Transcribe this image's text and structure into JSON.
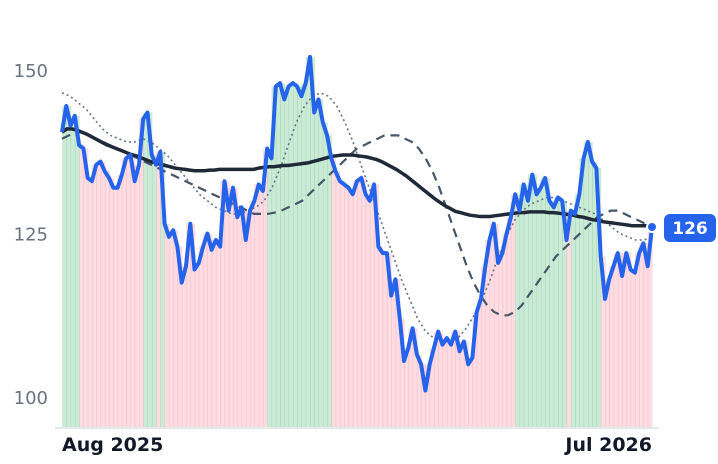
{
  "colors": {
    "price_line": "#2563eb",
    "ma_long": "#1f2937",
    "ma_mid": "#475569",
    "ma_short": "#64748b",
    "up_band": "#16a34a",
    "down_band": "#f43f5e",
    "badge": "#2563eb",
    "axis": "#e5e7eb"
  },
  "chart_data": {
    "type": "line",
    "x_axis": {
      "type": "date",
      "ticks": [
        "Aug 2025",
        "Jul 2026"
      ]
    },
    "y_axis": {
      "range": [
        95,
        155
      ],
      "ticks": [
        100,
        125,
        150
      ]
    },
    "grid": false,
    "legend": "none",
    "last_value_label": "126",
    "series": [
      {
        "role": "price",
        "values": [
          140.5,
          144.5,
          141.5,
          143.0,
          138.5,
          138.0,
          133.5,
          133.0,
          135.5,
          136.0,
          134.5,
          133.5,
          132.0,
          132.0,
          134.0,
          136.5,
          137.0,
          133.0,
          135.5,
          142.5,
          143.5,
          137.0,
          135.5,
          137.5,
          126.5,
          124.5,
          125.5,
          123.0,
          117.5,
          120.0,
          126.5,
          119.5,
          120.5,
          123.0,
          125.0,
          122.5,
          124.0,
          123.0,
          133.0,
          128.5,
          132.0,
          127.5,
          129.0,
          124.0,
          128.5,
          130.0,
          132.5,
          131.5,
          138.0,
          136.5,
          147.5,
          148.0,
          145.5,
          147.5,
          148.0,
          147.5,
          146.0,
          148.0,
          152.0,
          143.5,
          145.5,
          142.0,
          140.0,
          136.5,
          134.5,
          133.0,
          132.5,
          132.0,
          131.0,
          133.0,
          133.5,
          131.0,
          130.0,
          132.5,
          123.0,
          122.0,
          122.0,
          115.5,
          118.0,
          112.0,
          105.5,
          107.5,
          110.5,
          106.5,
          105.0,
          101.0,
          105.0,
          107.5,
          110.0,
          108.0,
          109.0,
          108.0,
          110.0,
          107.0,
          108.5,
          105.0,
          106.0,
          113.0,
          115.0,
          120.0,
          124.0,
          126.5,
          120.5,
          122.0,
          125.0,
          127.5,
          131.0,
          128.5,
          132.5,
          130.0,
          134.0,
          131.0,
          132.0,
          133.5,
          130.0,
          129.0,
          130.5,
          130.0,
          124.0,
          128.5,
          128.0,
          131.0,
          136.5,
          139.0,
          136.0,
          135.0,
          121.5,
          115.0,
          118.0,
          120.0,
          122.0,
          118.5,
          122.0,
          119.5,
          119.0,
          122.0,
          123.5,
          120.0,
          126.0
        ]
      },
      {
        "role": "moving-average-long",
        "values": [
          140.5,
          141.0,
          141.0,
          140.8,
          140.5,
          140.2,
          139.8,
          139.4,
          139.0,
          138.6,
          138.3,
          138.0,
          137.7,
          137.4,
          137.1,
          136.9,
          136.6,
          136.3,
          136.0,
          135.8,
          135.6,
          135.4,
          135.2,
          135.0,
          134.9,
          134.8,
          134.7,
          134.6,
          134.6,
          134.6,
          134.7,
          134.7,
          134.8,
          134.8,
          134.8,
          134.8,
          134.8,
          134.8,
          134.8,
          134.8,
          135.0,
          135.1,
          135.2,
          135.2,
          135.3,
          135.4,
          135.4,
          135.5,
          135.6,
          135.7,
          135.8,
          136.0,
          136.2,
          136.4,
          136.6,
          136.8,
          136.9,
          137.0,
          137.0,
          137.0,
          136.9,
          136.8,
          136.7,
          136.5,
          136.3,
          136.0,
          135.6,
          135.2,
          134.8,
          134.3,
          133.8,
          133.2,
          132.6,
          132.0,
          131.4,
          130.8,
          130.2,
          129.7,
          129.2,
          128.8,
          128.4,
          128.2,
          128.0,
          127.8,
          127.7,
          127.6,
          127.6,
          127.6,
          127.7,
          127.8,
          127.9,
          128.0,
          128.1,
          128.2,
          128.2,
          128.3,
          128.3,
          128.3,
          128.3,
          128.2,
          128.2,
          128.1,
          128.0,
          127.9,
          127.8,
          127.6,
          127.5,
          127.3,
          127.1,
          127.0,
          126.8,
          126.7,
          126.6,
          126.5,
          126.4,
          126.3,
          126.2,
          126.2,
          126.2,
          126.2,
          126.2
        ]
      },
      {
        "role": "moving-average-mid",
        "values": [
          139.5,
          140.0,
          140.5,
          140.5,
          140.0,
          139.5,
          139.0,
          138.5,
          138.0,
          137.5,
          137.0,
          136.5,
          136.0,
          135.5,
          135.0,
          134.5,
          134.0,
          133.5,
          133.0,
          132.5,
          132.0,
          131.5,
          131.0,
          130.5,
          130.0,
          129.5,
          129.0,
          128.5,
          128.0,
          128.0,
          128.0,
          128.2,
          128.5,
          129.0,
          129.5,
          130.0,
          131.0,
          132.0,
          133.0,
          134.0,
          135.0,
          136.0,
          137.0,
          138.0,
          138.5,
          139.0,
          139.5,
          140.0,
          140.0,
          140.0,
          139.5,
          139.0,
          138.0,
          136.5,
          134.5,
          132.0,
          129.0,
          126.0,
          123.0,
          120.0,
          117.5,
          115.5,
          114.0,
          113.0,
          112.5,
          112.5,
          113.0,
          114.0,
          115.5,
          117.0,
          118.5,
          120.0,
          121.5,
          122.5,
          123.5,
          124.5,
          125.5,
          126.5,
          127.5,
          128.0,
          128.5,
          128.5,
          128.0,
          127.5,
          127.0,
          126.5,
          126.5
        ]
      },
      {
        "role": "moving-average-short",
        "values": [
          146.5,
          146.0,
          145.0,
          144.0,
          142.5,
          141.0,
          140.0,
          139.5,
          139.0,
          139.0,
          139.5,
          139.0,
          138.0,
          137.0,
          135.5,
          134.0,
          132.5,
          131.0,
          130.0,
          129.0,
          128.5,
          128.0,
          128.0,
          128.5,
          129.0,
          130.0,
          132.0,
          135.0,
          138.5,
          142.0,
          144.5,
          146.0,
          146.5,
          146.0,
          144.5,
          142.0,
          139.0,
          135.5,
          132.0,
          128.5,
          125.0,
          121.5,
          118.0,
          115.0,
          112.0,
          110.0,
          109.0,
          108.5,
          108.5,
          109.0,
          110.5,
          112.5,
          115.0,
          118.0,
          121.5,
          124.5,
          127.0,
          128.5,
          129.5,
          130.0,
          130.5,
          130.5,
          130.0,
          129.5,
          129.0,
          128.5,
          128.0,
          127.0,
          126.0,
          125.0,
          124.5,
          124.0,
          124.0,
          124.5
        ]
      }
    ]
  }
}
